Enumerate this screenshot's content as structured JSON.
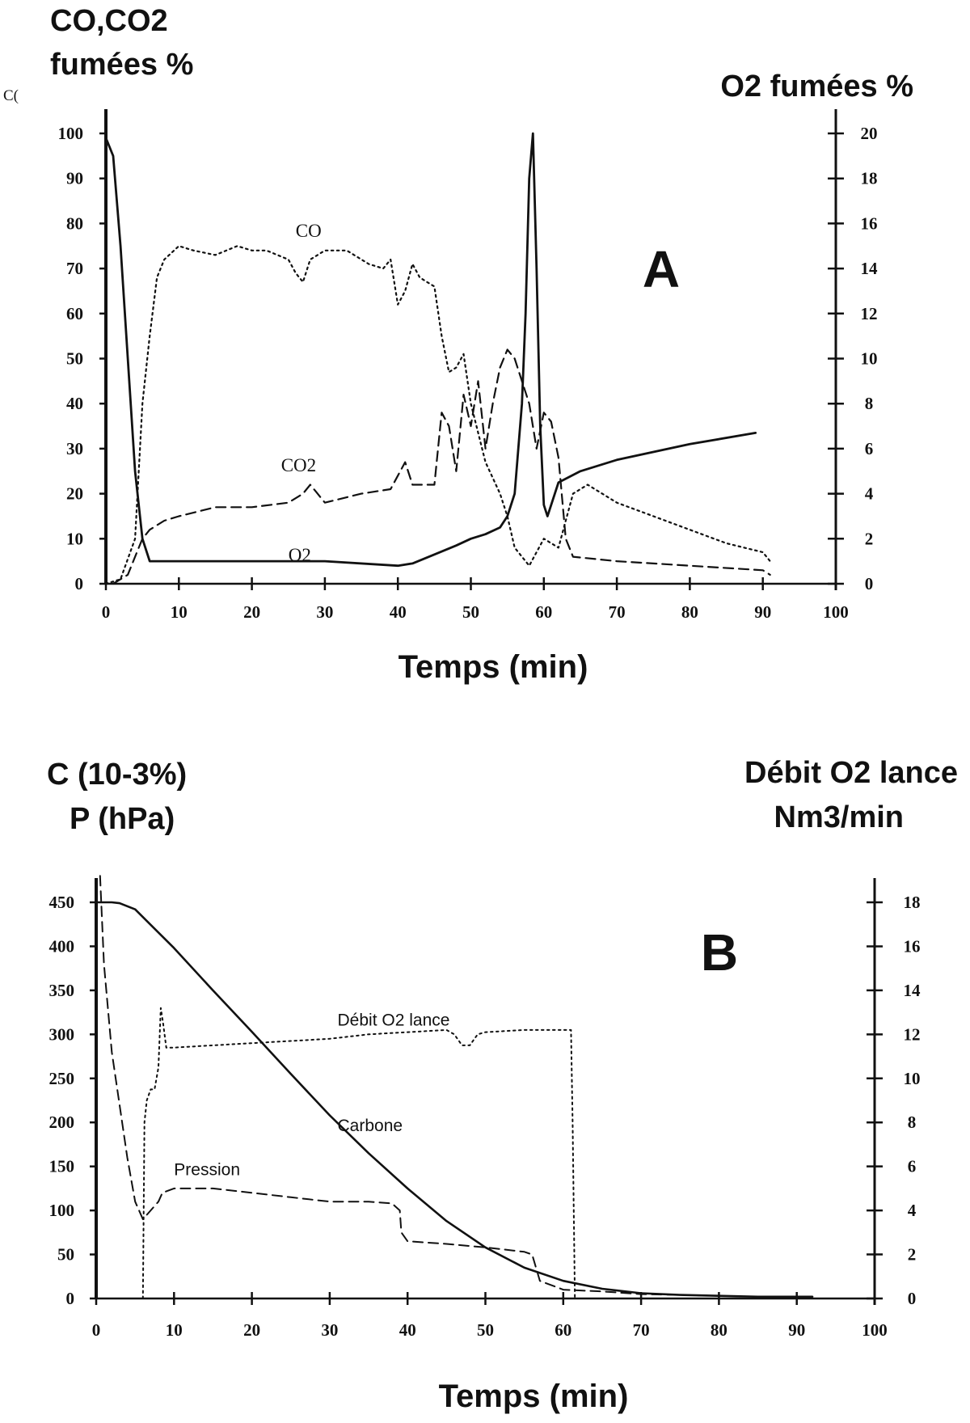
{
  "chart_data": [
    {
      "type": "line",
      "panel_letter": "A",
      "left_axis_title": [
        "CO,CO2",
        "fumées %"
      ],
      "left_axis_fragment": "C(",
      "right_axis_title": "O2 fumées %",
      "xlabel": "Temps (min)",
      "xlim": [
        0,
        100
      ],
      "ylim_left": [
        0,
        100
      ],
      "ylim_right": [
        0,
        20
      ],
      "x_ticks": [
        "0",
        "10",
        "20",
        "30",
        "40",
        "50",
        "60",
        "70",
        "80",
        "90",
        "100"
      ],
      "y_left_ticks": [
        "0",
        "10",
        "20",
        "30",
        "40",
        "50",
        "60",
        "70",
        "80",
        "90",
        "100"
      ],
      "y_right_ticks": [
        "0",
        "2",
        "4",
        "6",
        "8",
        "10",
        "12",
        "14",
        "16",
        "18",
        "20"
      ],
      "grid": false,
      "annotations": {
        "co": {
          "text": "CO",
          "x": 26,
          "y": 77
        },
        "co2": {
          "text": "CO2",
          "x": 24,
          "y": 25
        },
        "o2": {
          "text": "O2",
          "x": 25,
          "y": 5
        }
      },
      "series": [
        {
          "name": "CO",
          "axis": "left",
          "style": "dotted",
          "x": [
            0,
            2,
            4,
            5,
            6,
            7,
            8,
            10,
            12,
            15,
            18,
            20,
            22,
            25,
            26,
            27,
            28,
            29,
            30,
            33,
            36,
            38,
            39,
            40,
            41,
            42,
            43,
            44,
            45,
            46,
            47,
            48,
            49,
            50,
            52,
            54,
            55,
            56,
            58,
            60,
            62,
            64,
            66,
            70,
            80,
            85,
            90,
            91
          ],
          "y": [
            0,
            1,
            10,
            40,
            55,
            68,
            72,
            75,
            74,
            73,
            75,
            74,
            74,
            72,
            69,
            67,
            72,
            73,
            74,
            74,
            71,
            70,
            72,
            62,
            65,
            71,
            68,
            67,
            66,
            55,
            47,
            48,
            51,
            40,
            27,
            20,
            15,
            8,
            4,
            10,
            8,
            20,
            22,
            18,
            12,
            9,
            7,
            5
          ]
        },
        {
          "name": "CO2",
          "axis": "left",
          "style": "dashed",
          "x": [
            1,
            3,
            4,
            5,
            6,
            8,
            10,
            15,
            20,
            25,
            27,
            28,
            29,
            30,
            35,
            39,
            40,
            41,
            42,
            43,
            45,
            46,
            47,
            48,
            49,
            50,
            51,
            52,
            53,
            54,
            55,
            56,
            57,
            58,
            59,
            60,
            61,
            62,
            63,
            64,
            70,
            80,
            90,
            91
          ],
          "y": [
            0,
            2,
            6,
            10,
            12,
            14,
            15,
            17,
            17,
            18,
            20,
            22,
            20,
            18,
            20,
            21,
            24,
            27,
            22,
            22,
            22,
            38,
            35,
            25,
            42,
            35,
            45,
            30,
            40,
            48,
            52,
            50,
            45,
            40,
            30,
            38,
            36,
            28,
            10,
            6,
            5,
            4,
            3,
            2
          ]
        },
        {
          "name": "O2",
          "axis": "right",
          "style": "solid",
          "x": [
            0,
            1,
            2,
            3,
            4,
            5,
            6,
            7,
            10,
            20,
            30,
            40,
            42,
            45,
            48,
            50,
            52,
            54,
            55,
            56,
            57,
            57.5,
            58,
            58.5,
            59,
            59.5,
            60,
            60.5,
            62,
            65,
            70,
            80,
            89
          ],
          "y": [
            19.8,
            19,
            15,
            10,
            5,
            2,
            1,
            1,
            1,
            1,
            1,
            0.8,
            0.9,
            1.3,
            1.7,
            2.0,
            2.2,
            2.5,
            3.0,
            4.0,
            8,
            12,
            18,
            20,
            14,
            7,
            3.5,
            3.0,
            4.5,
            5.0,
            5.5,
            6.2,
            6.7
          ]
        }
      ]
    },
    {
      "type": "line",
      "panel_letter": "B",
      "left_axis_title": [
        "C (10-3%)",
        "P (hPa)"
      ],
      "right_axis_title": [
        "Débit O2 lance",
        "Nm3/min"
      ],
      "xlabel": "Temps (min)",
      "xlim": [
        0,
        100
      ],
      "ylim_left": [
        0,
        450
      ],
      "ylim_right": [
        0,
        18
      ],
      "x_ticks": [
        "0",
        "10",
        "20",
        "30",
        "40",
        "50",
        "60",
        "70",
        "80",
        "90",
        "100"
      ],
      "y_left_ticks": [
        "0",
        "50",
        "100",
        "150",
        "200",
        "250",
        "300",
        "350",
        "400",
        "450"
      ],
      "y_right_ticks": [
        "0",
        "2",
        "4",
        "6",
        "8",
        "10",
        "12",
        "14",
        "16",
        "18"
      ],
      "grid": false,
      "annotations": {
        "debit": {
          "text": "Débit O2 lance",
          "x": 31,
          "y": 310
        },
        "carbone": {
          "text": "Carbone",
          "x": 31,
          "y": 190
        },
        "pression": {
          "text": "Pression",
          "x": 10,
          "y": 140
        }
      },
      "series": [
        {
          "name": "Carbone",
          "axis": "left",
          "style": "solid",
          "x": [
            0,
            1,
            2,
            3,
            5,
            10,
            15,
            20,
            25,
            30,
            35,
            40,
            45,
            50,
            55,
            60,
            65,
            70,
            75,
            80,
            85,
            90,
            92
          ],
          "y": [
            450,
            450,
            450,
            449,
            442,
            398,
            350,
            303,
            255,
            208,
            165,
            125,
            88,
            58,
            35,
            20,
            11,
            6,
            4,
            3,
            2,
            2,
            2
          ]
        },
        {
          "name": "Pression",
          "axis": "left",
          "style": "dashed",
          "x": [
            0.5,
            1,
            2,
            3,
            4,
            5,
            6,
            7,
            8,
            8.5,
            10,
            15,
            20,
            25,
            30,
            35,
            38,
            39,
            39.2,
            40,
            45,
            50,
            55,
            56,
            57,
            60,
            65,
            70,
            75,
            80
          ],
          "y": [
            480,
            380,
            280,
            220,
            160,
            110,
            90,
            100,
            110,
            120,
            125,
            125,
            120,
            115,
            110,
            110,
            108,
            100,
            75,
            65,
            62,
            58,
            53,
            50,
            20,
            10,
            8,
            5,
            4,
            3
          ]
        },
        {
          "name": "Débit O2 lance",
          "axis": "right",
          "style": "dotted",
          "x": [
            6,
            6.2,
            6.5,
            7,
            7.5,
            8,
            8.3,
            8.6,
            9,
            10,
            15,
            20,
            25,
            30,
            35,
            40,
            45,
            46,
            47,
            48,
            49,
            50,
            55,
            61,
            61.2,
            61.5
          ],
          "y": [
            0,
            8,
            9,
            9.5,
            9.5,
            10.5,
            13.2,
            12.5,
            11.4,
            11.4,
            11.5,
            11.6,
            11.7,
            11.8,
            12.0,
            12.1,
            12.2,
            12.0,
            11.5,
            11.5,
            12.0,
            12.1,
            12.2,
            12.2,
            8,
            0
          ]
        }
      ]
    }
  ]
}
